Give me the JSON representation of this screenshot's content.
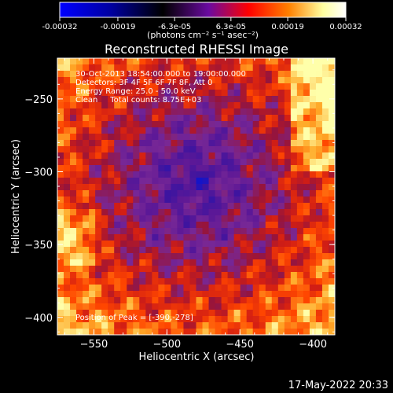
{
  "chart_data": {
    "type": "heatmap",
    "title": "Reconstructed RHESSI Image",
    "xlabel": "Heliocentric X (arcsec)",
    "ylabel": "Heliocentric Y (arcsec)",
    "xlim": [
      -575,
      -385
    ],
    "ylim": [
      -412,
      -222
    ],
    "x_ticks": [
      -550,
      -500,
      -450,
      -400
    ],
    "y_ticks": [
      -400,
      -350,
      -300,
      -250
    ],
    "colorbar": {
      "range": [
        -0.00032,
        0.00032
      ],
      "tick_values": [
        -0.00032,
        -0.00019,
        -6.3e-05,
        6.3e-05,
        0.00019,
        0.00032
      ],
      "tick_labels": [
        "-0.00032",
        "-0.00019",
        "-6.3e-05",
        "6.3e-05",
        "0.00019",
        "0.00032"
      ],
      "unit_label": "(photons cm⁻² s⁻¹ asec⁻²)",
      "colors": [
        "#0000ff",
        "#0000a0",
        "#000000",
        "#6a0aa0",
        "#ff0000",
        "#ff8000",
        "#ffffa0",
        "#ffffff"
      ]
    },
    "info_lines": [
      "30-Oct-2013 18:54:00.000 to 19:00:00.000",
      "Detectors: 3F 4F 5F 6F 7F 8F, Att 0",
      "Energy Range: 25.0 - 50.0 keV",
      "Clean     Total counts: 8.75E+03"
    ],
    "peak_label": "Position of Peak = [-390,-278]",
    "peak_position": [
      -390,
      -278
    ]
  },
  "footer": {
    "timestamp": "17-May-2022 20:33"
  }
}
